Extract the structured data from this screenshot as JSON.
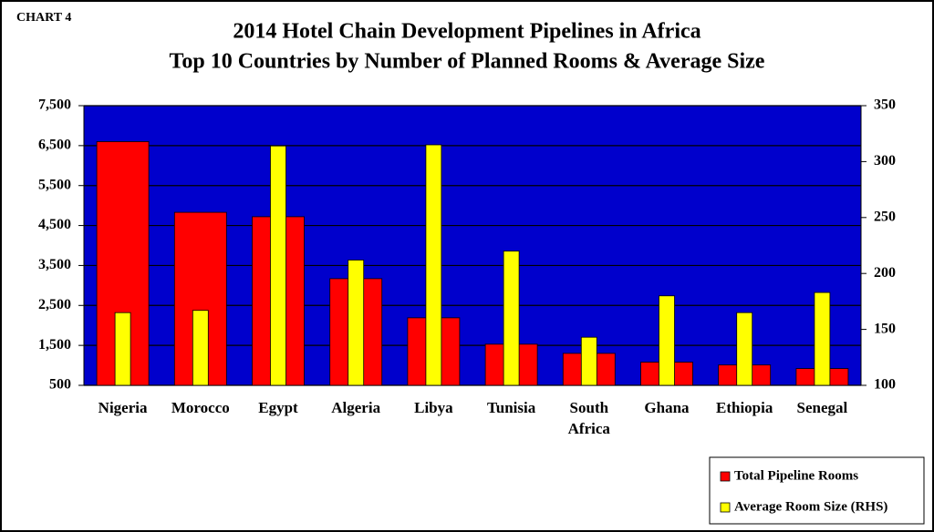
{
  "chart_data": {
    "type": "bar",
    "label": "CHART 4",
    "title": "2014 Hotel Chain Development Pipelines in Africa",
    "subtitle": "Top 10 Countries by Number of Planned Rooms & Average Size",
    "categories": [
      "Nigeria",
      "Morocco",
      "Egypt",
      "Algeria",
      "Libya",
      "Tunisia",
      "South Africa",
      "Ghana",
      "Ethiopia",
      "Senegal"
    ],
    "series": [
      {
        "name": "Total Pipeline Rooms",
        "color": "#ff0000",
        "values": [
          6600,
          4830,
          4720,
          3170,
          2190,
          1530,
          1300,
          1080,
          1010,
          920
        ]
      },
      {
        "name": "Average Room Size (RHS)",
        "color": "#ffff00",
        "axis": "y2",
        "values": [
          165,
          167,
          314,
          212,
          315,
          220,
          143,
          180,
          165,
          183
        ]
      }
    ],
    "ylim": [
      500,
      7500
    ],
    "yticks": [
      {
        "value": 500,
        "label": "500"
      },
      {
        "value": 1500,
        "label": "1,500"
      },
      {
        "value": 2500,
        "label": "2,500"
      },
      {
        "value": 3500,
        "label": "3,500"
      },
      {
        "value": 4500,
        "label": "4,500"
      },
      {
        "value": 5500,
        "label": "5,500"
      },
      {
        "value": 6500,
        "label": "6,500"
      },
      {
        "value": 7500,
        "label": "7,500"
      }
    ],
    "y2lim": [
      100,
      350
    ],
    "y2ticks": [
      100,
      150,
      200,
      250,
      300,
      350
    ],
    "grid": true,
    "background": "#0000cc",
    "legend": "lower right"
  }
}
